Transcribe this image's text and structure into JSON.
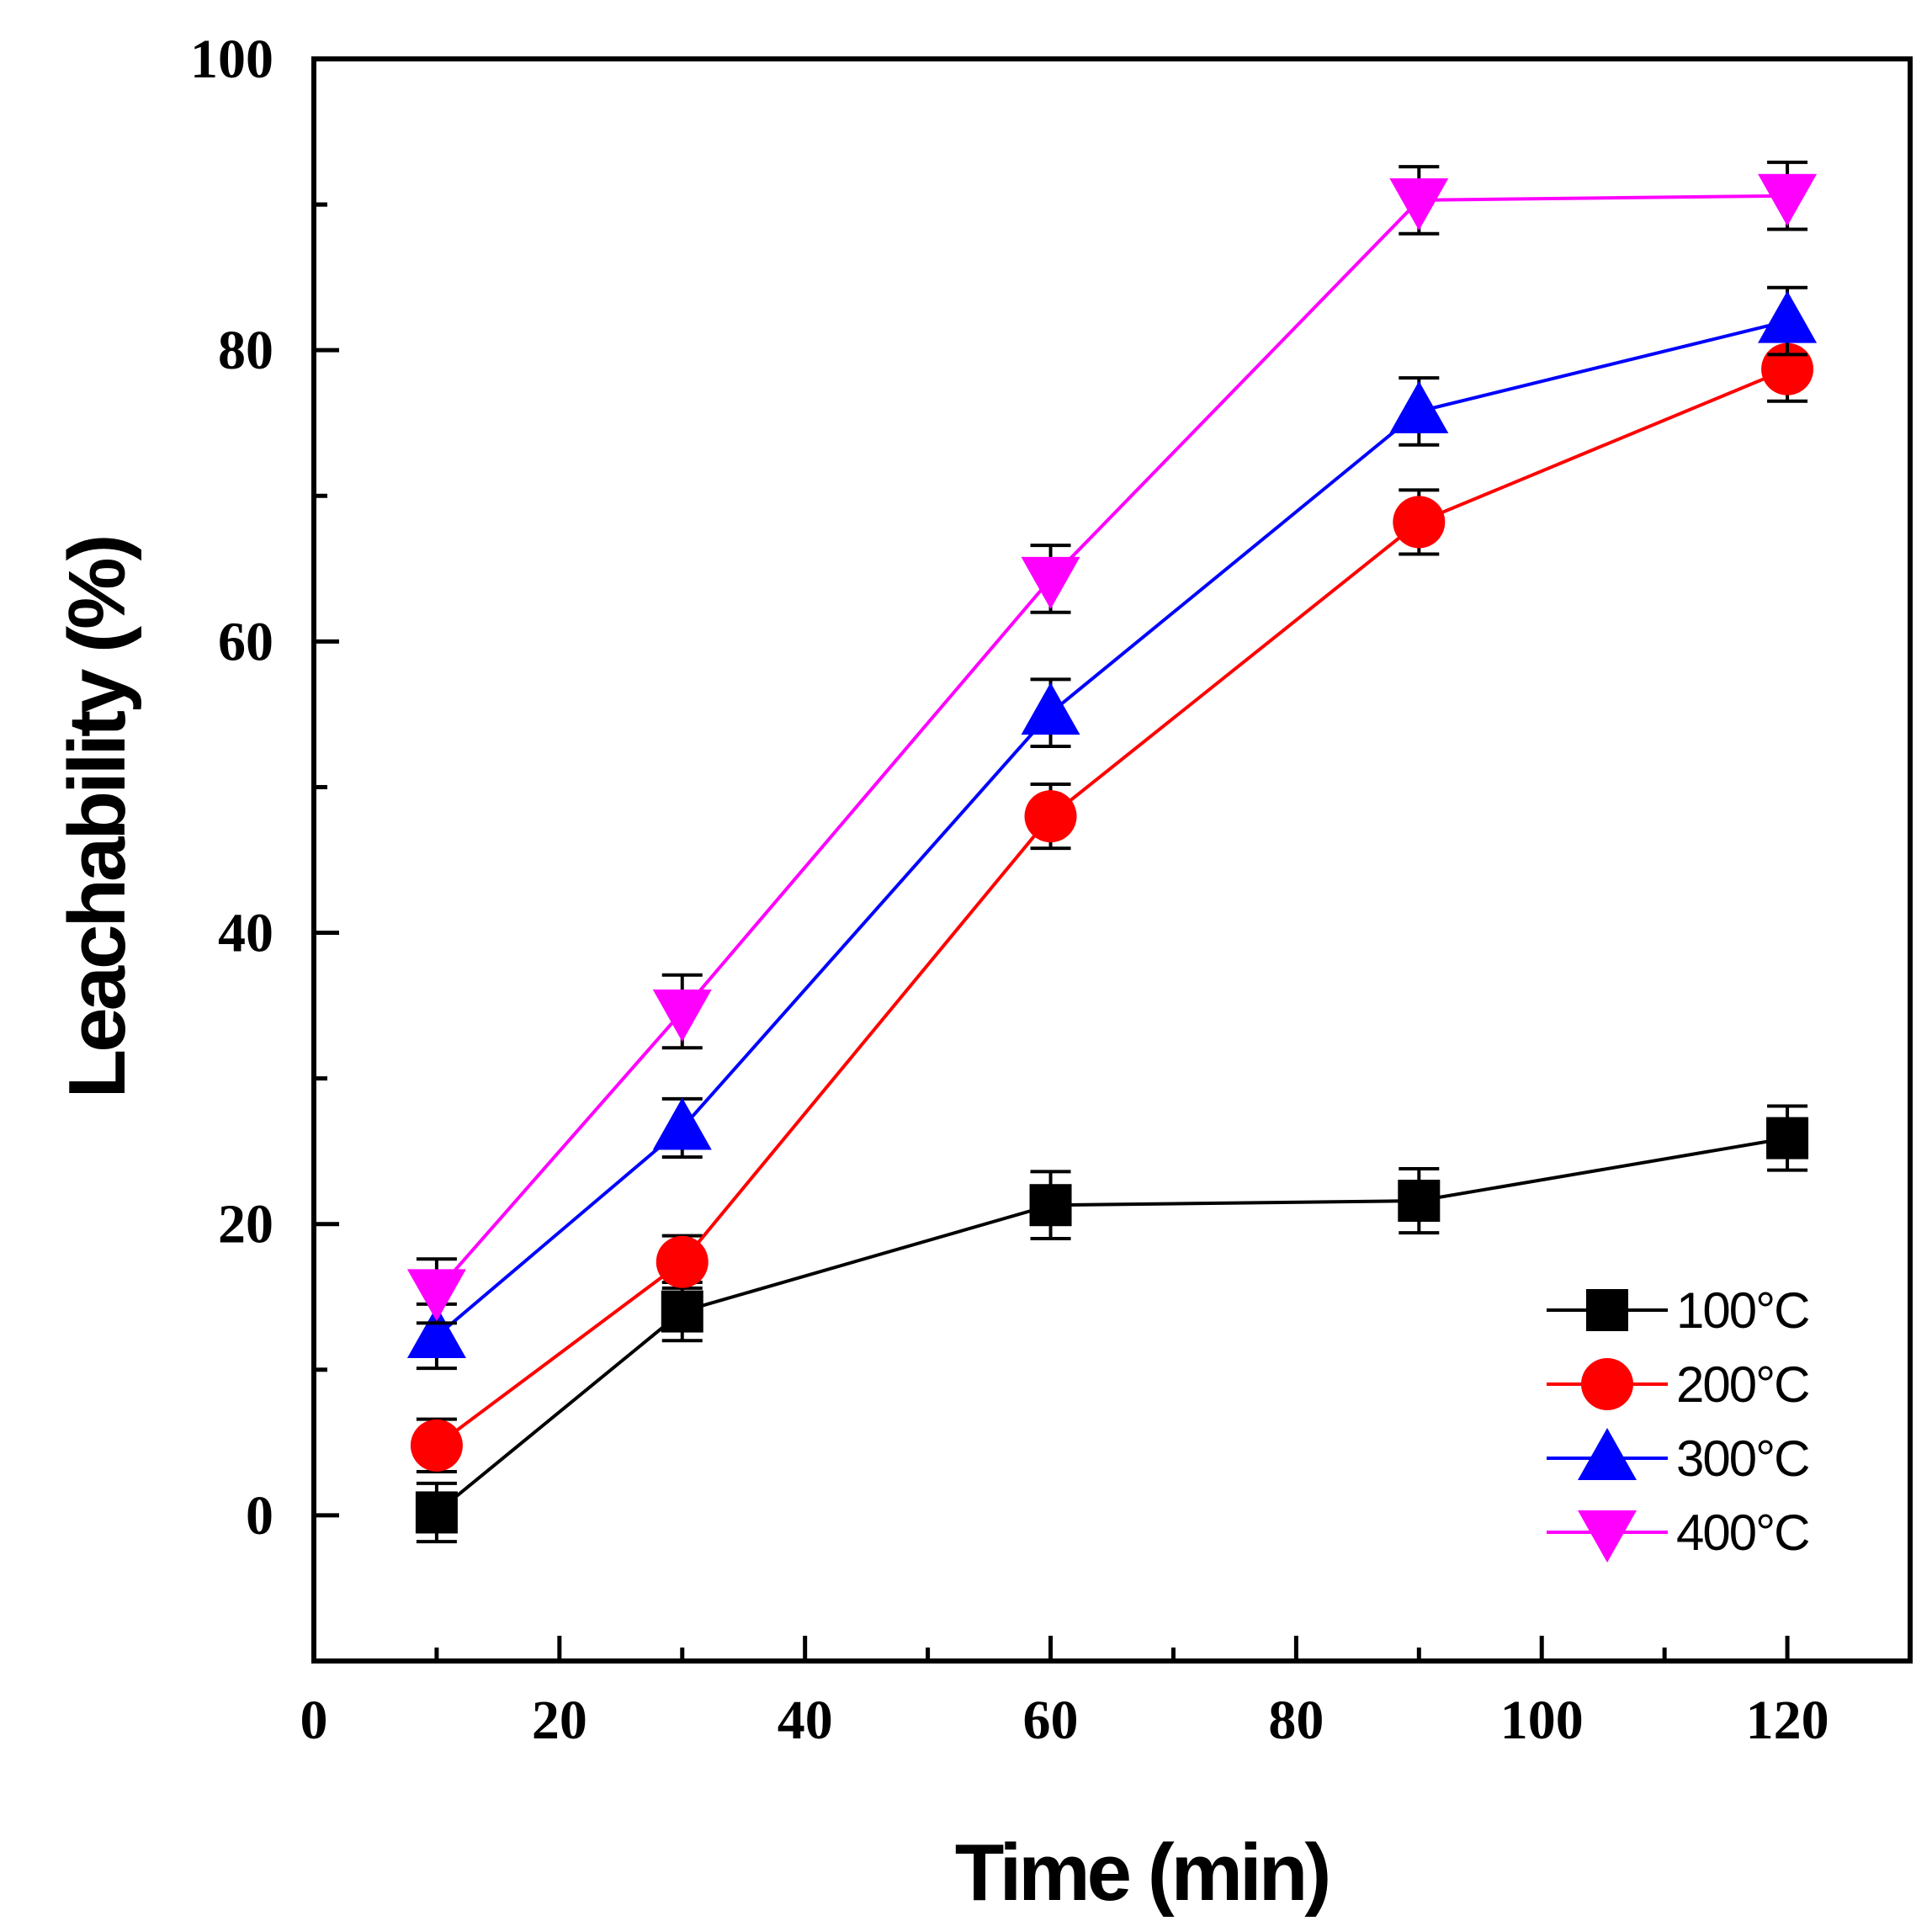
{
  "chart_data": {
    "type": "line",
    "title": "",
    "xlabel": "Time (min)",
    "ylabel": "Leachability (%)",
    "xlim": [
      0,
      130
    ],
    "ylim": [
      -10,
      100
    ],
    "xticks": [
      0,
      20,
      40,
      60,
      80,
      100,
      120
    ],
    "yticks": [
      0,
      20,
      40,
      60,
      80,
      100
    ],
    "x": [
      10,
      30,
      60,
      90,
      120
    ],
    "legend_position": "bottom-right",
    "series": [
      {
        "name": "100°C",
        "color": "#000000",
        "marker": "square",
        "values": [
          0.2,
          14.0,
          21.3,
          21.6,
          25.9
        ],
        "errors": [
          2.0,
          2.0,
          2.3,
          2.2,
          2.2
        ]
      },
      {
        "name": "200°C",
        "color": "#ff0000",
        "marker": "circle",
        "values": [
          4.8,
          17.4,
          48.0,
          68.2,
          78.7
        ],
        "errors": [
          1.8,
          1.8,
          2.2,
          2.2,
          2.2
        ]
      },
      {
        "name": "300°C",
        "color": "#0000ff",
        "marker": "triangle-up",
        "values": [
          12.3,
          26.6,
          55.1,
          75.8,
          82.0
        ],
        "errors": [
          2.2,
          2.0,
          2.3,
          2.3,
          2.3
        ]
      },
      {
        "name": "400°C",
        "color": "#ff00ff",
        "marker": "triangle-down",
        "values": [
          15.4,
          34.6,
          64.3,
          90.3,
          90.6
        ],
        "errors": [
          2.2,
          2.5,
          2.3,
          2.3,
          2.3
        ]
      }
    ]
  }
}
